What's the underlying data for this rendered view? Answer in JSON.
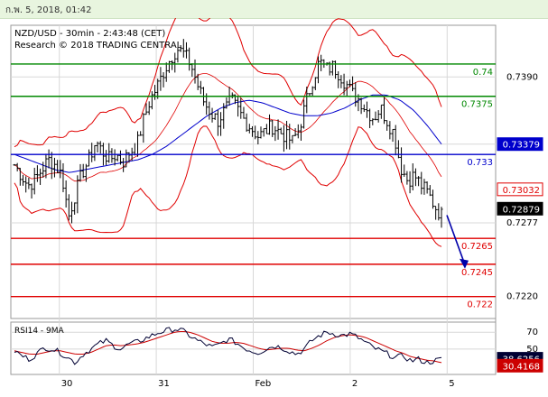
{
  "window": {
    "timestamp": "ก.พ. 5, 2018, 01:42"
  },
  "chart_data": {
    "type": "line",
    "title": "NZD/USD - 30min - 2:43:48 (CET)",
    "subtitle": "Research © 2018 TRADING CENTRAL",
    "yticks": [
      {
        "label": "0.7390",
        "value": 0.739
      },
      {
        "label": "0.73379",
        "value": 0.7338
      },
      {
        "label": "0.7277",
        "value": 0.7277
      },
      {
        "label": "0.7220",
        "value": 0.722
      }
    ],
    "ylim": [
      0.7203,
      0.743
    ],
    "xticks": [
      {
        "label": "30",
        "pos": 0.1
      },
      {
        "label": "31",
        "pos": 0.3
      },
      {
        "label": "Feb",
        "pos": 0.5
      },
      {
        "label": "2",
        "pos": 0.7
      },
      {
        "label": "5",
        "pos": 0.9
      }
    ],
    "colors": {
      "support": "#e00000",
      "resistance": "#008800",
      "pivot": "#0000cc",
      "bollinger": "#e00000",
      "ma": "#0000cc",
      "price": "#000000",
      "rsi": "#000033",
      "rsi_ma": "#cc0000"
    },
    "levels": [
      {
        "name": "resistance-2",
        "label": "0.74",
        "value": 0.74,
        "color": "#008800"
      },
      {
        "name": "resistance-1",
        "label": "0.7375",
        "value": 0.7375,
        "color": "#008800"
      },
      {
        "name": "pivot",
        "label": "0.733",
        "value": 0.733,
        "color": "#0000cc"
      },
      {
        "name": "support-1",
        "label": "0.7265",
        "value": 0.7265,
        "color": "#e00000"
      },
      {
        "name": "support-2",
        "label": "0.7245",
        "value": 0.7245,
        "color": "#e00000"
      },
      {
        "name": "support-3",
        "label": "0.722",
        "value": 0.722,
        "color": "#e00000"
      }
    ],
    "price_badges": [
      {
        "name": "ma-badge",
        "label": "0.73379",
        "value": 0.7338,
        "bg": "#0000cc",
        "fg": "#ffffff"
      },
      {
        "name": "bb-mid-badge",
        "label": "0.73032",
        "value": 0.7303,
        "bg": "#ffffff",
        "fg": "#e00000",
        "border": "#e00000"
      },
      {
        "name": "last-price-badge",
        "label": "0.72879",
        "value": 0.7288,
        "bg": "#000000",
        "fg": "#ffffff"
      }
    ],
    "forecast": {
      "from": 0.7283,
      "to": 0.7243
    },
    "close_profile": [
      0.7322,
      0.7314,
      0.7306,
      0.731,
      0.7318,
      0.7326,
      0.7322,
      0.7314,
      0.7282,
      0.73,
      0.7316,
      0.7326,
      0.734,
      0.7332,
      0.7326,
      0.733,
      0.7324,
      0.7332,
      0.7336,
      0.7356,
      0.7372,
      0.7382,
      0.7394,
      0.7404,
      0.7412,
      0.7408,
      0.74,
      0.7384,
      0.737,
      0.7362,
      0.7356,
      0.7364,
      0.7372,
      0.7364,
      0.7356,
      0.735,
      0.7344,
      0.7348,
      0.7352,
      0.7348,
      0.7344,
      0.734,
      0.735,
      0.737,
      0.7388,
      0.7402,
      0.7396,
      0.7398,
      0.7392,
      0.7384,
      0.7376,
      0.7372,
      0.7364,
      0.7358,
      0.7366,
      0.7356,
      0.7346,
      0.732,
      0.731,
      0.7314,
      0.7306,
      0.73,
      0.729,
      0.7283
    ],
    "ma_profile": [
      0.733,
      0.7326,
      0.7322,
      0.7318,
      0.7316,
      0.7318,
      0.732,
      0.7322,
      0.7324,
      0.7326,
      0.733,
      0.7336,
      0.7344,
      0.7352,
      0.736,
      0.7366,
      0.737,
      0.7372,
      0.737,
      0.7366,
      0.7362,
      0.736,
      0.736,
      0.7362,
      0.7366,
      0.7372,
      0.7376,
      0.7376,
      0.7372,
      0.7364,
      0.7352,
      0.7338
    ],
    "rsi": {
      "label": "RSI14 - 9MA",
      "yticks": [
        {
          "label": "70",
          "value": 70
        },
        {
          "label": "50",
          "value": 50
        }
      ],
      "ylim": [
        20,
        82
      ],
      "badges": [
        {
          "name": "rsi-badge",
          "label": "38.6256",
          "value": 38.6,
          "bg": "#000033",
          "fg": "#ffffff"
        },
        {
          "name": "rsi-ma-badge",
          "label": "30.4168",
          "value": 30.4,
          "bg": "#cc0000",
          "fg": "#ffffff"
        }
      ],
      "rsi_profile": [
        48,
        42,
        38,
        45,
        52,
        50,
        46,
        40,
        34,
        44,
        50,
        56,
        60,
        54,
        50,
        56,
        58,
        62,
        66,
        70,
        72,
        74,
        72,
        66,
        60,
        56,
        52,
        56,
        62,
        58,
        52,
        48,
        46,
        50,
        54,
        52,
        48,
        44,
        50,
        60,
        66,
        70,
        68,
        66,
        68,
        64,
        58,
        52,
        48,
        44,
        40,
        42,
        36,
        38,
        34,
        36,
        38
      ],
      "ma_profile": [
        48,
        46,
        44,
        44,
        46,
        48,
        48,
        46,
        44,
        44,
        46,
        50,
        54,
        55,
        54,
        55,
        56,
        58,
        61,
        64,
        67,
        70,
        71,
        70,
        67,
        63,
        59,
        57,
        57,
        58,
        57,
        54,
        51,
        49,
        50,
        51,
        51,
        49,
        48,
        51,
        55,
        60,
        64,
        66,
        67,
        66,
        64,
        60,
        56,
        52,
        48,
        45,
        41,
        39,
        37,
        36,
        34
      ]
    }
  }
}
